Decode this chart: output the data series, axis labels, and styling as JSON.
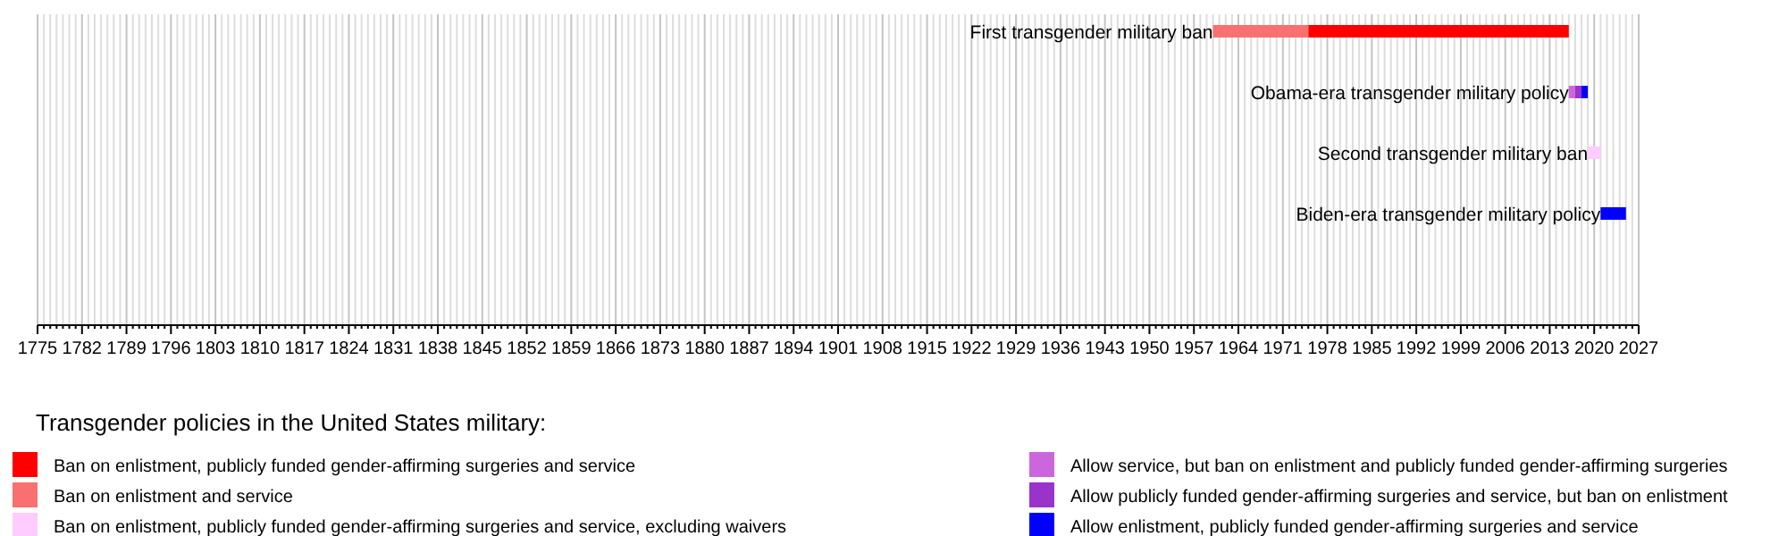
{
  "chart_data": {
    "type": "bar",
    "orientation": "horizontal",
    "legend_title": "Transgender policies in the United States military:",
    "legend": "bottom",
    "grid": "x",
    "categories": [
      "First transgender military ban",
      "Obama-era transgender military policy",
      "Second transgender military ban",
      "Biden-era transgender military policy"
    ],
    "series": [
      {
        "name": "Ban on enlistment, publicly funded gender-affirming surgeries and service",
        "color": "#ff0000",
        "base": [
          1975,
          null,
          null,
          null
        ],
        "values": [
          41,
          null,
          null,
          null
        ]
      },
      {
        "name": "Ban on enlistment and service",
        "color": "#f87070",
        "base": [
          1960,
          null,
          null,
          null
        ],
        "values": [
          15,
          null,
          null,
          null
        ]
      },
      {
        "name": "Ban on enlistment, publicly funded gender-affirming surgeries and service, excluding waivers",
        "color": "#ffccff",
        "base": [
          null,
          null,
          2019,
          null
        ],
        "values": [
          null,
          null,
          2,
          null
        ]
      },
      {
        "name": "Allow service, but ban on enlistment and publicly funded gender-affirming surgeries",
        "color": "#cc66dd",
        "base": [
          null,
          2016,
          null,
          null
        ],
        "values": [
          null,
          1,
          null,
          null
        ]
      },
      {
        "name": "Allow publicly funded gender-affirming surgeries and service, but ban on enlistment",
        "color": "#9933cc",
        "base": [
          null,
          2017,
          null,
          null
        ],
        "values": [
          null,
          1,
          null,
          null
        ]
      },
      {
        "name": "Allow enlistment, publicly funded gender-affirming surgeries and service",
        "color": "#0000ff",
        "base": [
          null,
          2018,
          null,
          2021
        ],
        "values": [
          null,
          1,
          null,
          4
        ]
      }
    ],
    "xlim": [
      1775,
      2027
    ],
    "xticks": [
      1775,
      {
        "value": 1776,
        "label": null
      },
      {
        "value": 1777,
        "label": null
      },
      {
        "value": 1778,
        "label": null
      },
      {
        "value": 1779,
        "label": null
      },
      {
        "value": 1780,
        "label": null
      },
      {
        "value": 1781,
        "label": null
      },
      1782,
      {
        "value": 1783,
        "label": null
      },
      {
        "value": 1784,
        "label": null
      },
      {
        "value": 1785,
        "label": null
      },
      {
        "value": 1786,
        "label": null
      },
      {
        "value": 1787,
        "label": null
      },
      {
        "value": 1788,
        "label": null
      },
      1789,
      {
        "value": 1790,
        "label": null
      },
      {
        "value": 1791,
        "label": null
      },
      {
        "value": 1792,
        "label": null
      },
      {
        "value": 1793,
        "label": null
      },
      {
        "value": 1794,
        "label": null
      },
      {
        "value": 1795,
        "label": null
      },
      1796,
      {
        "value": 1797,
        "label": null
      },
      {
        "value": 1798,
        "label": null
      },
      {
        "value": 1799,
        "label": null
      },
      {
        "value": 1800,
        "label": null
      },
      {
        "value": 1801,
        "label": null
      },
      {
        "value": 1802,
        "label": null
      },
      1803,
      {
        "value": 1804,
        "label": null
      },
      {
        "value": 1805,
        "label": null
      },
      {
        "value": 1806,
        "label": null
      },
      {
        "value": 1807,
        "label": null
      },
      {
        "value": 1808,
        "label": null
      },
      {
        "value": 1809,
        "label": null
      },
      1810,
      {
        "value": 1811,
        "label": null
      },
      {
        "value": 1812,
        "label": null
      },
      {
        "value": 1813,
        "label": null
      },
      {
        "value": 1814,
        "label": null
      },
      {
        "value": 1815,
        "label": null
      },
      {
        "value": 1816,
        "label": null
      },
      1817,
      {
        "value": 1818,
        "label": null
      },
      {
        "value": 1819,
        "label": null
      },
      {
        "value": 1820,
        "label": null
      },
      {
        "value": 1821,
        "label": null
      },
      {
        "value": 1822,
        "label": null
      },
      {
        "value": 1823,
        "label": null
      },
      1824,
      {
        "value": 1825,
        "label": null
      },
      {
        "value": 1826,
        "label": null
      },
      {
        "value": 1827,
        "label": null
      },
      {
        "value": 1828,
        "label": null
      },
      {
        "value": 1829,
        "label": null
      },
      {
        "value": 1830,
        "label": null
      },
      1831,
      {
        "value": 1832,
        "label": null
      },
      {
        "value": 1833,
        "label": null
      },
      {
        "value": 1834,
        "label": null
      },
      {
        "value": 1835,
        "label": null
      },
      {
        "value": 1836,
        "label": null
      },
      {
        "value": 1837,
        "label": null
      },
      1838,
      {
        "value": 1839,
        "label": null
      },
      {
        "value": 1840,
        "label": null
      },
      {
        "value": 1841,
        "label": null
      },
      {
        "value": 1842,
        "label": null
      },
      {
        "value": 1843,
        "label": null
      },
      {
        "value": 1844,
        "label": null
      },
      1845,
      {
        "value": 1846,
        "label": null
      },
      {
        "value": 1847,
        "label": null
      },
      {
        "value": 1848,
        "label": null
      },
      {
        "value": 1849,
        "label": null
      },
      {
        "value": 1850,
        "label": null
      },
      {
        "value": 1851,
        "label": null
      },
      1852,
      {
        "value": 1853,
        "label": null
      },
      {
        "value": 1854,
        "label": null
      },
      {
        "value": 1855,
        "label": null
      },
      {
        "value": 1856,
        "label": null
      },
      {
        "value": 1857,
        "label": null
      },
      {
        "value": 1858,
        "label": null
      },
      1859,
      {
        "value": 1860,
        "label": null
      },
      {
        "value": 1861,
        "label": null
      },
      {
        "value": 1862,
        "label": null
      },
      {
        "value": 1863,
        "label": null
      },
      {
        "value": 1864,
        "label": null
      },
      {
        "value": 1865,
        "label": null
      },
      1866,
      {
        "value": 1867,
        "label": null
      },
      {
        "value": 1868,
        "label": null
      },
      {
        "value": 1869,
        "label": null
      },
      {
        "value": 1870,
        "label": null
      },
      {
        "value": 1871,
        "label": null
      },
      {
        "value": 1872,
        "label": null
      },
      1873,
      {
        "value": 1874,
        "label": null
      },
      {
        "value": 1875,
        "label": null
      },
      {
        "value": 1876,
        "label": null
      },
      {
        "value": 1877,
        "label": null
      },
      {
        "value": 1878,
        "label": null
      },
      {
        "value": 1879,
        "label": null
      },
      1880,
      {
        "value": 1881,
        "label": null
      },
      {
        "value": 1882,
        "label": null
      },
      {
        "value": 1883,
        "label": null
      },
      {
        "value": 1884,
        "label": null
      },
      {
        "value": 1885,
        "label": null
      },
      {
        "value": 1886,
        "label": null
      },
      1887,
      {
        "value": 1888,
        "label": null
      },
      {
        "value": 1889,
        "label": null
      },
      {
        "value": 1890,
        "label": null
      },
      {
        "value": 1891,
        "label": null
      },
      {
        "value": 1892,
        "label": null
      },
      {
        "value": 1893,
        "label": null
      },
      1894,
      {
        "value": 1895,
        "label": null
      },
      {
        "value": 1896,
        "label": null
      },
      {
        "value": 1897,
        "label": null
      },
      {
        "value": 1898,
        "label": null
      },
      {
        "value": 1899,
        "label": null
      },
      {
        "value": 1900,
        "label": null
      },
      1901,
      {
        "value": 1902,
        "label": null
      },
      {
        "value": 1903,
        "label": null
      },
      {
        "value": 1904,
        "label": null
      },
      {
        "value": 1905,
        "label": null
      },
      {
        "value": 1906,
        "label": null
      },
      {
        "value": 1907,
        "label": null
      },
      1908,
      {
        "value": 1909,
        "label": null
      },
      {
        "value": 1910,
        "label": null
      },
      {
        "value": 1911,
        "label": null
      },
      {
        "value": 1912,
        "label": null
      },
      {
        "value": 1913,
        "label": null
      },
      {
        "value": 1914,
        "label": null
      },
      1915,
      {
        "value": 1916,
        "label": null
      },
      {
        "value": 1917,
        "label": null
      },
      {
        "value": 1918,
        "label": null
      },
      {
        "value": 1919,
        "label": null
      },
      {
        "value": 1920,
        "label": null
      },
      {
        "value": 1921,
        "label": null
      },
      1922,
      {
        "value": 1923,
        "label": null
      },
      {
        "value": 1924,
        "label": null
      },
      {
        "value": 1925,
        "label": null
      },
      {
        "value": 1926,
        "label": null
      },
      {
        "value": 1927,
        "label": null
      },
      {
        "value": 1928,
        "label": null
      },
      1929,
      {
        "value": 1930,
        "label": null
      },
      {
        "value": 1931,
        "label": null
      },
      {
        "value": 1932,
        "label": null
      },
      {
        "value": 1933,
        "label": null
      },
      {
        "value": 1934,
        "label": null
      },
      {
        "value": 1935,
        "label": null
      },
      1936,
      {
        "value": 1937,
        "label": null
      },
      {
        "value": 1938,
        "label": null
      },
      {
        "value": 1939,
        "label": null
      },
      {
        "value": 1940,
        "label": null
      },
      {
        "value": 1941,
        "label": null
      },
      {
        "value": 1942,
        "label": null
      },
      1943,
      {
        "value": 1944,
        "label": null
      },
      {
        "value": 1945,
        "label": null
      },
      {
        "value": 1946,
        "label": null
      },
      {
        "value": 1947,
        "label": null
      },
      {
        "value": 1948,
        "label": null
      },
      {
        "value": 1949,
        "label": null
      },
      1950,
      {
        "value": 1951,
        "label": null
      },
      {
        "value": 1952,
        "label": null
      },
      {
        "value": 1953,
        "label": null
      },
      {
        "value": 1954,
        "label": null
      },
      {
        "value": 1955,
        "label": null
      },
      {
        "value": 1956,
        "label": null
      },
      1957,
      {
        "value": 1958,
        "label": null
      },
      {
        "value": 1959,
        "label": null
      },
      {
        "value": 1960,
        "label": null
      },
      {
        "value": 1961,
        "label": null
      },
      {
        "value": 1962,
        "label": null
      },
      {
        "value": 1963,
        "label": null
      },
      1964,
      {
        "value": 1965,
        "label": null
      },
      {
        "value": 1966,
        "label": null
      },
      {
        "value": 1967,
        "label": null
      },
      {
        "value": 1968,
        "label": null
      },
      {
        "value": 1969,
        "label": null
      },
      {
        "value": 1970,
        "label": null
      },
      1971,
      {
        "value": 1972,
        "label": null
      },
      {
        "value": 1973,
        "label": null
      },
      {
        "value": 1974,
        "label": null
      },
      {
        "value": 1975,
        "label": null
      },
      {
        "value": 1976,
        "label": null
      },
      {
        "value": 1977,
        "label": null
      },
      1978,
      {
        "value": 1979,
        "label": null
      },
      {
        "value": 1980,
        "label": null
      },
      {
        "value": 1981,
        "label": null
      },
      {
        "value": 1982,
        "label": null
      },
      {
        "value": 1983,
        "label": null
      },
      {
        "value": 1984,
        "label": null
      },
      1985,
      {
        "value": 1986,
        "label": null
      },
      {
        "value": 1987,
        "label": null
      },
      {
        "value": 1988,
        "label": null
      },
      {
        "value": 1989,
        "label": null
      },
      {
        "value": 1990,
        "label": null
      },
      {
        "value": 1991,
        "label": null
      },
      1992,
      {
        "value": 1993,
        "label": null
      },
      {
        "value": 1994,
        "label": null
      },
      {
        "value": 1995,
        "label": null
      },
      {
        "value": 1996,
        "label": null
      },
      {
        "value": 1997,
        "label": null
      },
      {
        "value": 1998,
        "label": null
      },
      1999,
      {
        "value": 2000,
        "label": null
      },
      {
        "value": 2001,
        "label": null
      },
      {
        "value": 2002,
        "label": null
      },
      {
        "value": 2003,
        "label": null
      },
      {
        "value": 2004,
        "label": null
      },
      {
        "value": 2005,
        "label": null
      },
      2006,
      {
        "value": 2007,
        "label": null
      },
      {
        "value": 2008,
        "label": null
      },
      {
        "value": 2009,
        "label": null
      },
      {
        "value": 2010,
        "label": null
      },
      {
        "value": 2011,
        "label": null
      },
      {
        "value": 2012,
        "label": null
      },
      2013,
      {
        "value": 2014,
        "label": null
      },
      {
        "value": 2015,
        "label": null
      },
      {
        "value": 2016,
        "label": null
      },
      {
        "value": 2017,
        "label": null
      },
      {
        "value": 2018,
        "label": null
      },
      {
        "value": 2019,
        "label": null
      },
      2020,
      {
        "value": 2021,
        "label": null
      },
      {
        "value": 2022,
        "label": null
      },
      {
        "value": 2023,
        "label": null
      },
      {
        "value": 2024,
        "label": null
      },
      {
        "value": 2025,
        "label": null
      },
      {
        "value": 2026,
        "label": null
      },
      2027
    ]
  }
}
